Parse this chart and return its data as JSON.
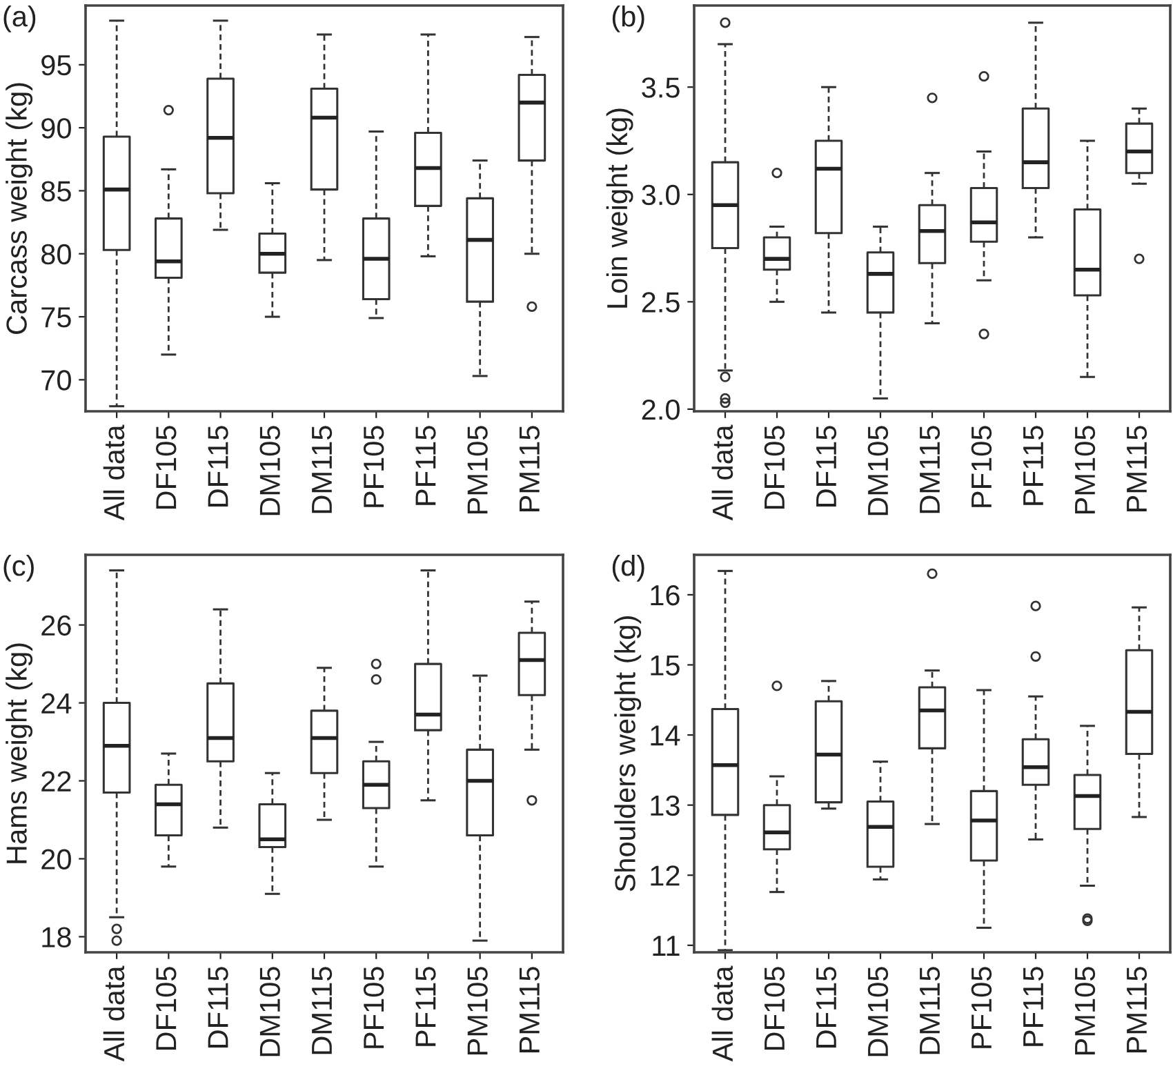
{
  "chart_data": [
    {
      "type": "box",
      "title": "(a)",
      "ylabel": "Carcass weight (kg)",
      "ylim": [
        67.5,
        99.7
      ],
      "yticks": [
        70,
        75,
        80,
        85,
        90,
        95
      ],
      "grid": false,
      "categories": [
        "All data",
        "DF105",
        "DF115",
        "DM105",
        "DM115",
        "PF105",
        "PF115",
        "PM105",
        "PM115"
      ],
      "boxes": [
        {
          "low": 67.9,
          "q1": 80.3,
          "median": 85.1,
          "q3": 89.3,
          "high": 98.5
        },
        {
          "low": 72.0,
          "q1": 78.1,
          "median": 79.4,
          "q3": 82.8,
          "high": 86.7,
          "outliers": [
            91.4
          ]
        },
        {
          "low": 81.9,
          "q1": 84.8,
          "median": 89.2,
          "q3": 93.9,
          "high": 98.5
        },
        {
          "low": 75.0,
          "q1": 78.5,
          "median": 80.0,
          "q3": 81.6,
          "high": 85.6
        },
        {
          "low": 79.5,
          "q1": 85.1,
          "median": 90.8,
          "q3": 93.1,
          "high": 97.4
        },
        {
          "low": 74.9,
          "q1": 76.4,
          "median": 79.6,
          "q3": 82.8,
          "high": 89.7
        },
        {
          "low": 79.8,
          "q1": 83.8,
          "median": 86.8,
          "q3": 89.6,
          "high": 97.4
        },
        {
          "low": 70.3,
          "q1": 76.2,
          "median": 81.1,
          "q3": 84.4,
          "high": 87.4
        },
        {
          "low": 80.0,
          "q1": 87.4,
          "median": 92.0,
          "q3": 94.2,
          "high": 97.2,
          "outliers": [
            75.8
          ]
        }
      ]
    },
    {
      "type": "box",
      "title": "(b)",
      "ylabel": "Loin weight (kg)",
      "ylim": [
        1.99,
        3.88
      ],
      "yticks": [
        {
          "value": 2.0,
          "label": "2.0"
        },
        {
          "value": 2.5,
          "label": "2.5"
        },
        {
          "value": 3.0,
          "label": "3.0"
        },
        {
          "value": 3.5,
          "label": "3.5"
        }
      ],
      "grid": false,
      "categories": [
        "All data",
        "DF105",
        "DF115",
        "DM105",
        "DM115",
        "PF105",
        "PF115",
        "PM105",
        "PM115"
      ],
      "boxes": [
        {
          "low": 2.18,
          "q1": 2.75,
          "median": 2.95,
          "q3": 3.15,
          "high": 3.7,
          "outliers": [
            3.8,
            2.15,
            2.05,
            2.03
          ]
        },
        {
          "low": 2.5,
          "q1": 2.65,
          "median": 2.7,
          "q3": 2.8,
          "high": 2.85,
          "outliers": [
            3.1
          ]
        },
        {
          "low": 2.45,
          "q1": 2.82,
          "median": 3.12,
          "q3": 3.25,
          "high": 3.5
        },
        {
          "low": 2.05,
          "q1": 2.45,
          "median": 2.63,
          "q3": 2.73,
          "high": 2.85
        },
        {
          "low": 2.4,
          "q1": 2.68,
          "median": 2.83,
          "q3": 2.95,
          "high": 3.1,
          "outliers": [
            3.45
          ]
        },
        {
          "low": 2.6,
          "q1": 2.78,
          "median": 2.87,
          "q3": 3.03,
          "high": 3.2,
          "outliers": [
            3.55,
            2.35
          ]
        },
        {
          "low": 2.8,
          "q1": 3.03,
          "median": 3.15,
          "q3": 3.4,
          "high": 3.8
        },
        {
          "low": 2.15,
          "q1": 2.53,
          "median": 2.65,
          "q3": 2.93,
          "high": 3.25
        },
        {
          "low": 3.05,
          "q1": 3.1,
          "median": 3.2,
          "q3": 3.33,
          "high": 3.4,
          "outliers": [
            2.7
          ]
        }
      ]
    },
    {
      "type": "box",
      "title": "(c)",
      "ylabel": "Hams weight (kg)",
      "ylim": [
        17.6,
        27.8
      ],
      "yticks": [
        18,
        20,
        22,
        24,
        26
      ],
      "grid": false,
      "categories": [
        "All data",
        "DF105",
        "DF115",
        "DM105",
        "DM115",
        "PF105",
        "PF115",
        "PM105",
        "PM115"
      ],
      "boxes": [
        {
          "low": 18.5,
          "q1": 21.7,
          "median": 22.9,
          "q3": 24.0,
          "high": 27.4,
          "outliers": [
            18.2,
            17.9
          ]
        },
        {
          "low": 19.8,
          "q1": 20.6,
          "median": 21.4,
          "q3": 21.9,
          "high": 22.7
        },
        {
          "low": 20.8,
          "q1": 22.5,
          "median": 23.1,
          "q3": 24.5,
          "high": 26.4
        },
        {
          "low": 19.1,
          "q1": 20.3,
          "median": 20.5,
          "q3": 21.4,
          "high": 22.2
        },
        {
          "low": 21.0,
          "q1": 22.2,
          "median": 23.1,
          "q3": 23.8,
          "high": 24.9
        },
        {
          "low": 19.8,
          "q1": 21.3,
          "median": 21.9,
          "q3": 22.5,
          "high": 23.0,
          "outliers": [
            25.0,
            24.6
          ]
        },
        {
          "low": 21.5,
          "q1": 23.3,
          "median": 23.7,
          "q3": 25.0,
          "high": 27.4
        },
        {
          "low": 17.9,
          "q1": 20.6,
          "median": 22.0,
          "q3": 22.8,
          "high": 24.7
        },
        {
          "low": 22.8,
          "q1": 24.2,
          "median": 25.1,
          "q3": 25.8,
          "high": 26.6,
          "outliers": [
            21.5
          ]
        }
      ]
    },
    {
      "type": "box",
      "title": "(d)",
      "ylabel": "Shoulders weight (kg)",
      "ylim": [
        10.9,
        16.57
      ],
      "yticks": [
        11,
        12,
        13,
        14,
        15,
        16
      ],
      "grid": false,
      "categories": [
        "All data",
        "DF105",
        "DF115",
        "DM105",
        "DM115",
        "PF105",
        "PF115",
        "PM105",
        "PM115"
      ],
      "boxes": [
        {
          "low": 10.93,
          "q1": 12.86,
          "median": 13.57,
          "q3": 14.37,
          "high": 16.34
        },
        {
          "low": 11.76,
          "q1": 12.37,
          "median": 12.61,
          "q3": 13.0,
          "high": 13.41,
          "outliers": [
            14.7
          ]
        },
        {
          "low": 12.95,
          "q1": 13.04,
          "median": 13.72,
          "q3": 14.48,
          "high": 14.77
        },
        {
          "low": 11.94,
          "q1": 12.12,
          "median": 12.69,
          "q3": 13.05,
          "high": 13.62
        },
        {
          "low": 12.73,
          "q1": 13.81,
          "median": 14.35,
          "q3": 14.68,
          "high": 14.92,
          "outliers": [
            16.3
          ]
        },
        {
          "low": 11.25,
          "q1": 12.21,
          "median": 12.78,
          "q3": 13.2,
          "high": 14.64
        },
        {
          "low": 12.51,
          "q1": 13.29,
          "median": 13.54,
          "q3": 13.94,
          "high": 14.55,
          "outliers": [
            15.84,
            15.12
          ]
        },
        {
          "low": 11.85,
          "q1": 12.66,
          "median": 13.13,
          "q3": 13.43,
          "high": 14.13,
          "outliers": [
            11.38,
            11.35
          ]
        },
        {
          "low": 12.83,
          "q1": 13.73,
          "median": 14.33,
          "q3": 15.21,
          "high": 15.82
        }
      ]
    }
  ]
}
